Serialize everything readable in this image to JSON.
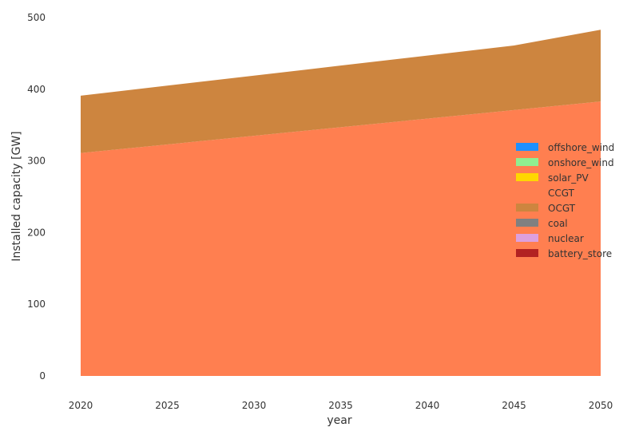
{
  "chart_data": {
    "type": "area",
    "stacked": true,
    "x": [
      2020,
      2025,
      2030,
      2035,
      2040,
      2045,
      2050
    ],
    "xlabel": "year",
    "ylabel": "Installed capacity [GW]",
    "xlim": [
      2020,
      2050
    ],
    "ylim": [
      0,
      500
    ],
    "xticks": [
      2020,
      2025,
      2030,
      2035,
      2040,
      2045,
      2050
    ],
    "yticks": [
      0,
      100,
      200,
      300,
      400,
      500
    ],
    "grid": false,
    "legend_position": "right",
    "series": [
      {
        "name": "offshore_wind",
        "color": "#1e90ff",
        "values": [
          0,
          0,
          0,
          0,
          0,
          0,
          0
        ]
      },
      {
        "name": "onshore_wind",
        "color": "#90ee90",
        "values": [
          0,
          0,
          0,
          0,
          0,
          0,
          0
        ]
      },
      {
        "name": "solar_PV",
        "color": "#ffd700",
        "values": [
          0,
          0,
          0,
          0,
          0,
          0,
          0
        ]
      },
      {
        "name": "CCGT",
        "color": "#ff7f50",
        "values": [
          311,
          323,
          335,
          347,
          359,
          371,
          383
        ]
      },
      {
        "name": "OCGT",
        "color": "#cd853f",
        "values": [
          80,
          82,
          84,
          86,
          88,
          90,
          100
        ]
      },
      {
        "name": "coal",
        "color": "#808080",
        "values": [
          0,
          0,
          0,
          0,
          0,
          0,
          0
        ]
      },
      {
        "name": "nuclear",
        "color": "#dda0dd",
        "values": [
          0,
          0,
          0,
          0,
          0,
          0,
          0
        ]
      },
      {
        "name": "battery_store",
        "color": "#b22222",
        "values": [
          0,
          0,
          0,
          0,
          0,
          0,
          0
        ]
      }
    ]
  }
}
